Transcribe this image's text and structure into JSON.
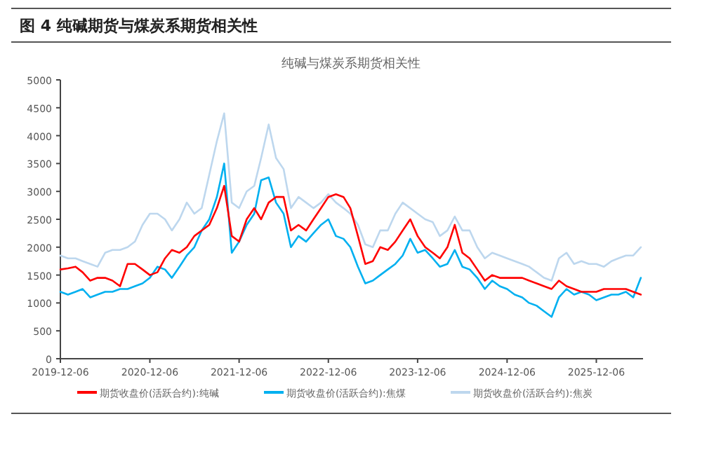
{
  "chart_data": {
    "type": "line",
    "title": "图 4  纯碱期货与煤炭系期货相关性",
    "subtitle": "纯碱与煤炭系期货相关性",
    "x": [
      "2019-12-06",
      "2020-01",
      "2020-02",
      "2020-03",
      "2020-04",
      "2020-05",
      "2020-06",
      "2020-07",
      "2020-08",
      "2020-09",
      "2020-10",
      "2020-11",
      "2020-12",
      "2021-01",
      "2021-02",
      "2021-03",
      "2021-04",
      "2021-05",
      "2021-06",
      "2021-07",
      "2021-08",
      "2021-09",
      "2021-10",
      "2021-11",
      "2021-12",
      "2022-01",
      "2022-02",
      "2022-03",
      "2022-04",
      "2022-05",
      "2022-06",
      "2022-07",
      "2022-08",
      "2022-09",
      "2022-10",
      "2022-11",
      "2022-12",
      "2023-01",
      "2023-02",
      "2023-03",
      "2023-04",
      "2023-05",
      "2023-06",
      "2023-07",
      "2023-08",
      "2023-09",
      "2023-10",
      "2023-11",
      "2023-12",
      "2024-01",
      "2024-02",
      "2024-03",
      "2024-04",
      "2024-05",
      "2024-06",
      "2024-07",
      "2024-08",
      "2024-09",
      "2024-10",
      "2024-11",
      "2024-12",
      "2025-01",
      "2025-02",
      "2025-03",
      "2025-04",
      "2025-05",
      "2025-06",
      "2025-07",
      "2025-08",
      "2025-09",
      "2025-10",
      "2025-11",
      "2025-12",
      "2026-01",
      "2026-02",
      "2026-03",
      "2026-04",
      "2026-05",
      "2026-06"
    ],
    "series": [
      {
        "name": "期货收盘价(活跃合约):纯碱",
        "color": "#ff0000",
        "values": [
          1600,
          1620,
          1650,
          1550,
          1400,
          1450,
          1450,
          1400,
          1300,
          1700,
          1700,
          1600,
          1500,
          1550,
          1800,
          1950,
          1900,
          2000,
          2200,
          2300,
          2400,
          2700,
          3100,
          2200,
          2100,
          2500,
          2700,
          2500,
          2800,
          2900,
          2900,
          2300,
          2400,
          2300,
          2500,
          2700,
          2900,
          2950,
          2900,
          2700,
          2200,
          1700,
          1750,
          2000,
          1950,
          2100,
          2300,
          2500,
          2200,
          2000,
          1900,
          1800,
          2000,
          2400,
          1900,
          1800,
          1600,
          1400,
          1500,
          1450,
          1450,
          1450,
          1450,
          1400,
          1350,
          1300,
          1250,
          1400,
          1300,
          1250,
          1200,
          1200,
          1200,
          1250,
          1250,
          1250,
          1250,
          1200,
          1150
        ]
      },
      {
        "name": "期货收盘价(活跃合约):焦煤",
        "color": "#00b0f0",
        "values": [
          1200,
          1150,
          1200,
          1250,
          1100,
          1150,
          1200,
          1200,
          1250,
          1250,
          1300,
          1350,
          1450,
          1650,
          1600,
          1450,
          1650,
          1850,
          2000,
          2300,
          2500,
          2900,
          3500,
          1900,
          2100,
          2400,
          2600,
          3200,
          3250,
          2800,
          2600,
          2000,
          2200,
          2100,
          2250,
          2400,
          2500,
          2200,
          2150,
          2000,
          1650,
          1350,
          1400,
          1500,
          1600,
          1700,
          1850,
          2150,
          1900,
          1950,
          1800,
          1650,
          1700,
          1950,
          1650,
          1600,
          1450,
          1250,
          1400,
          1300,
          1250,
          1150,
          1100,
          1000,
          950,
          850,
          750,
          1100,
          1250,
          1150,
          1200,
          1150,
          1050,
          1100,
          1150,
          1150,
          1200,
          1100,
          1450
        ]
      },
      {
        "name": "期货收盘价(活跃合约):焦炭",
        "color": "#bdd7ee",
        "values": [
          1850,
          1800,
          1800,
          1750,
          1700,
          1650,
          1900,
          1950,
          1950,
          2000,
          2100,
          2400,
          2600,
          2600,
          2500,
          2300,
          2500,
          2800,
          2600,
          2700,
          3300,
          3900,
          4400,
          2800,
          2700,
          3000,
          3100,
          3600,
          4200,
          3600,
          3400,
          2700,
          2900,
          2800,
          2700,
          2800,
          2950,
          2800,
          2700,
          2600,
          2400,
          2050,
          2000,
          2300,
          2300,
          2600,
          2800,
          2700,
          2600,
          2500,
          2450,
          2200,
          2300,
          2550,
          2300,
          2300,
          2000,
          1800,
          1900,
          1850,
          1800,
          1750,
          1700,
          1650,
          1550,
          1450,
          1400,
          1800,
          1900,
          1700,
          1750,
          1700,
          1700,
          1650,
          1750,
          1800,
          1850,
          1850,
          2000
        ]
      }
    ],
    "xlim": [
      "2019-12-06",
      "2026-06-15"
    ],
    "xticks": [
      "2019-12-06",
      "2020-12-06",
      "2021-12-06",
      "2022-12-06",
      "2023-12-06",
      "2024-12-06",
      "2025-12-06"
    ],
    "ylim": [
      0,
      5000
    ],
    "yticks": [
      0,
      500,
      1000,
      1500,
      2000,
      2500,
      3000,
      3500,
      4000,
      4500,
      5000
    ],
    "legend": "bottom",
    "grid": false,
    "marker": "none",
    "line_style": "solid"
  }
}
